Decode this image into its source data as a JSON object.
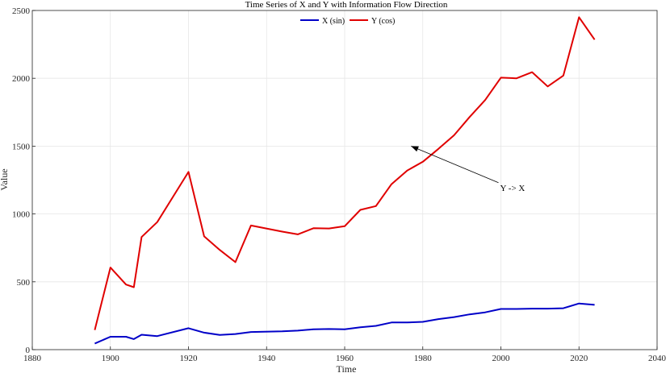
{
  "chart_data": {
    "type": "line",
    "title": "Time Series of X and Y with Information Flow Direction",
    "xlabel": "Time",
    "ylabel": "Value",
    "xlim": [
      1880,
      2040
    ],
    "ylim": [
      0,
      2500
    ],
    "xticks": [
      1880,
      1900,
      1920,
      1940,
      1960,
      1980,
      2000,
      2020,
      2040
    ],
    "yticks": [
      0,
      500,
      1000,
      1500,
      2000,
      2500
    ],
    "grid": true,
    "legend_position": "top-center",
    "series": [
      {
        "name": "X (sin)",
        "color": "#0000c8",
        "x": [
          1896,
          1900,
          1904,
          1906,
          1908,
          1912,
          1920,
          1924,
          1928,
          1932,
          1936,
          1944,
          1948,
          1952,
          1956,
          1960,
          1964,
          1968,
          1972,
          1976,
          1980,
          1984,
          1988,
          1992,
          1996,
          2000,
          2004,
          2008,
          2012,
          2016,
          2020,
          2024
        ],
        "y": [
          45,
          95,
          95,
          78,
          110,
          100,
          158,
          125,
          108,
          115,
          130,
          135,
          140,
          150,
          152,
          150,
          165,
          175,
          200,
          200,
          205,
          225,
          240,
          260,
          275,
          300,
          300,
          302,
          302,
          305,
          340,
          330
        ]
      },
      {
        "name": "Y (cos)",
        "color": "#e00000",
        "x": [
          1896,
          1900,
          1904,
          1906,
          1908,
          1912,
          1920,
          1924,
          1928,
          1932,
          1936,
          1944,
          1948,
          1952,
          1956,
          1960,
          1964,
          1968,
          1972,
          1976,
          1980,
          1984,
          1988,
          1992,
          1996,
          2000,
          2004,
          2008,
          2012,
          2016,
          2020,
          2024
        ],
        "y": [
          145,
          605,
          480,
          460,
          830,
          940,
          1310,
          835,
          735,
          645,
          915,
          870,
          850,
          895,
          893,
          910,
          1030,
          1058,
          1220,
          1320,
          1385,
          1480,
          1580,
          1715,
          1840,
          2005,
          2000,
          2045,
          1940,
          2020,
          2450,
          2285
        ]
      }
    ],
    "annotations": [
      {
        "text": "Y -> X",
        "x": 2000,
        "y": 1195,
        "arrow_to": [
          1977,
          1500
        ]
      }
    ]
  }
}
